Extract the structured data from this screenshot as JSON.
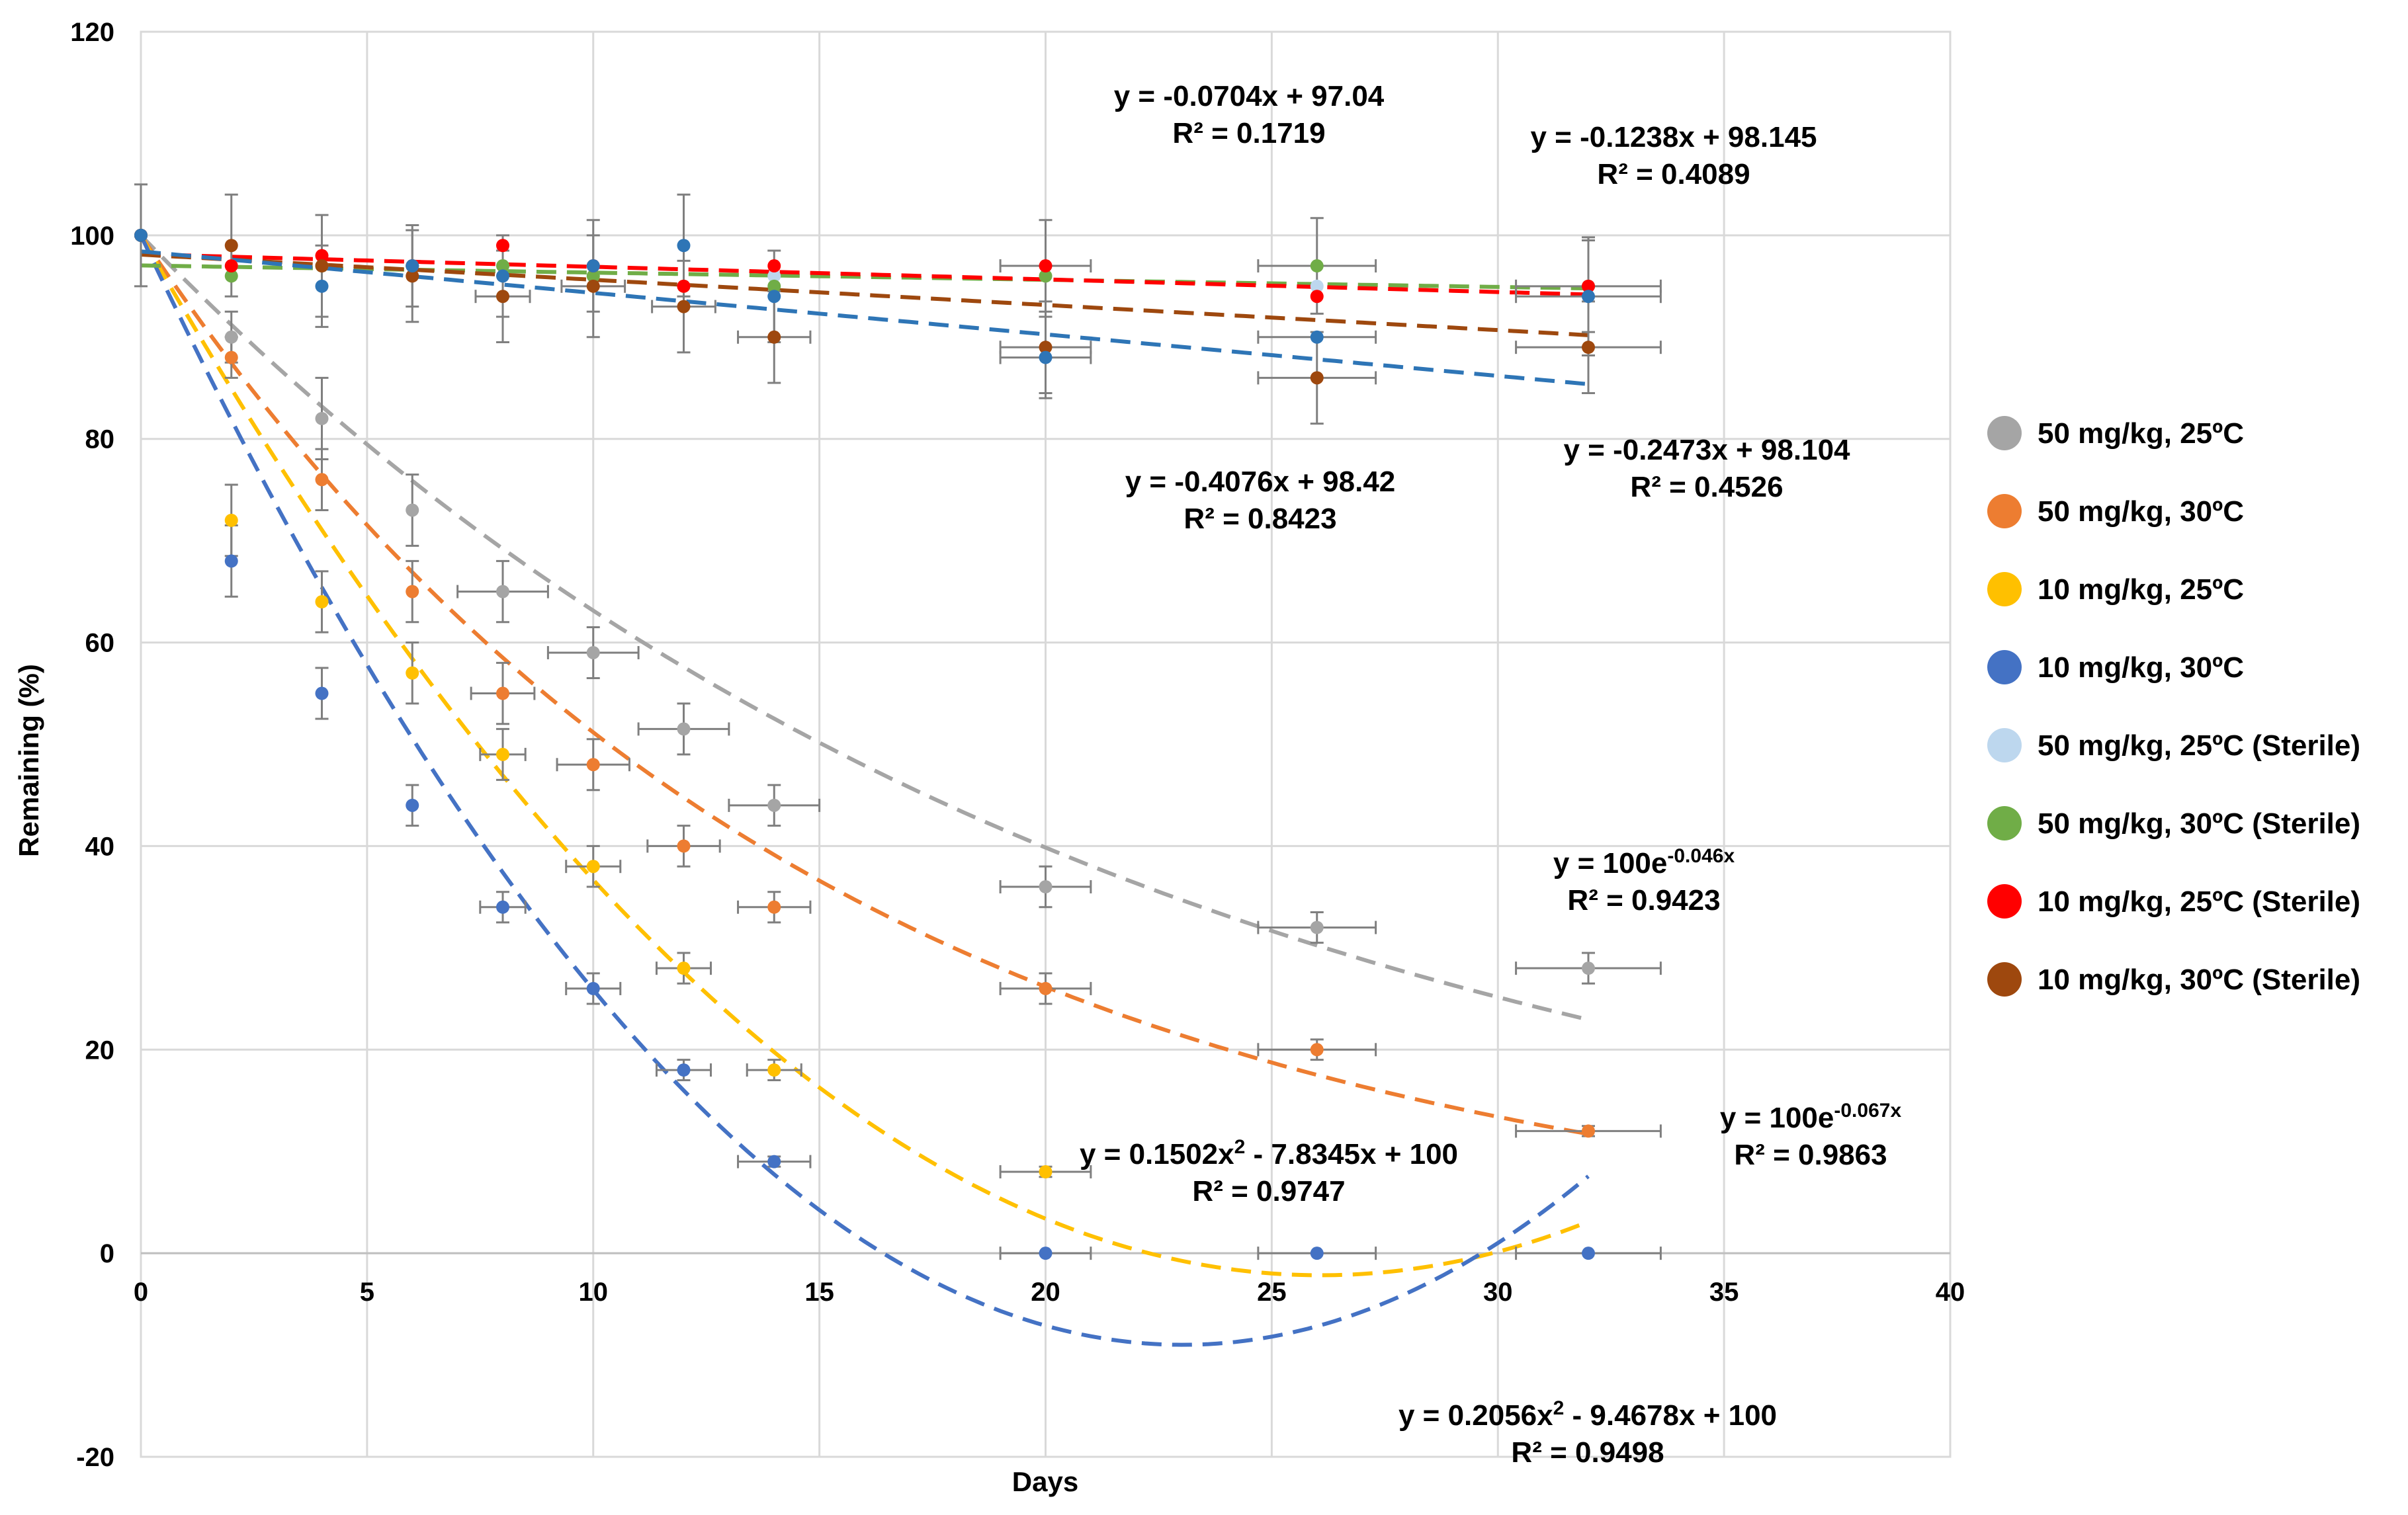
{
  "chart_data": {
    "type": "scatter",
    "title": "",
    "xlabel": "Days",
    "ylabel": "Remaining (%)",
    "xlim": [
      0,
      40
    ],
    "ylim": [
      -20,
      120
    ],
    "x_ticks": [
      0,
      5,
      10,
      15,
      20,
      25,
      30,
      35,
      40
    ],
    "y_ticks": [
      -20,
      0,
      20,
      40,
      60,
      80,
      100,
      120
    ],
    "grid": true,
    "legend_position": "right",
    "x": [
      0,
      2,
      4,
      6,
      8,
      10,
      12,
      14,
      20,
      26,
      32
    ],
    "series": [
      {
        "name": "50 mg/kg, 25ºC",
        "color": "#a5a5a5",
        "values": [
          100,
          90,
          82,
          73,
          65,
          59,
          51.5,
          44,
          36,
          32,
          28
        ],
        "yerr": [
          5,
          2.5,
          4,
          3.5,
          3,
          2.5,
          2.5,
          2,
          2,
          1.5,
          1.5
        ],
        "xerr": [
          0,
          0,
          0,
          0,
          1,
          1,
          1,
          1,
          1,
          1.3,
          1.6
        ],
        "trend": {
          "type": "exponential",
          "a": 100,
          "b": -0.046
        }
      },
      {
        "name": "50 mg/kg, 30ºC",
        "color": "#ed7d31",
        "values": [
          100,
          88,
          76,
          65,
          55,
          48,
          40,
          34,
          26,
          20,
          12
        ],
        "yerr": [
          0,
          2,
          3,
          3,
          3,
          2.5,
          2,
          1.5,
          1.5,
          1,
          0.5
        ],
        "xerr": [
          0,
          0,
          0,
          0,
          0.7,
          0.8,
          0.8,
          0.8,
          1,
          1.3,
          1.6
        ],
        "trend": {
          "type": "exponential",
          "a": 100,
          "b": -0.067
        }
      },
      {
        "name": "10 mg/kg, 25ºC",
        "color": "#ffc000",
        "values": [
          100,
          72,
          64,
          57,
          49,
          38,
          28,
          18,
          8,
          null,
          null
        ],
        "yerr": [
          0,
          3.5,
          3,
          3,
          2.5,
          2,
          1.5,
          1,
          0.5,
          0,
          0
        ],
        "xerr": [
          0,
          0,
          0,
          0,
          0.5,
          0.6,
          0.6,
          0.6,
          1,
          0,
          0
        ],
        "trend": {
          "type": "poly2",
          "a": 0.1502,
          "b": -7.8345,
          "c": 100
        }
      },
      {
        "name": "10 mg/kg, 30ºC",
        "color": "#4472c4",
        "values": [
          100,
          68,
          55,
          44,
          34,
          26,
          18,
          9,
          0,
          0,
          0
        ],
        "yerr": [
          0,
          3.5,
          2.5,
          2,
          1.5,
          1.5,
          1,
          0.5,
          0,
          0,
          0
        ],
        "xerr": [
          0,
          0,
          0,
          0,
          0.5,
          0.6,
          0.6,
          0.8,
          1,
          1.3,
          1.6
        ],
        "trend": {
          "type": "poly2",
          "a": 0.2056,
          "b": -9.4678,
          "c": 100
        }
      },
      {
        "name": "50 mg/kg, 25ºC (Sterile)",
        "color": "#bdd7ee",
        "values": [
          100,
          97,
          97,
          97,
          97,
          96,
          95,
          96,
          96,
          95,
          95
        ],
        "yerr": [
          0,
          0,
          0,
          0,
          0,
          0,
          0,
          0,
          0,
          0,
          0
        ],
        "xerr": [
          0,
          0,
          0,
          0,
          0,
          0,
          0,
          0,
          0,
          0,
          0
        ],
        "trend": null
      },
      {
        "name": "50 mg/kg, 30ºC (Sterile)",
        "color": "#70ad47",
        "values": [
          100,
          96,
          97,
          97,
          97,
          96,
          95,
          95,
          96,
          97,
          95
        ],
        "yerr": [
          0,
          0,
          0,
          0,
          0,
          0,
          0,
          0,
          0,
          4.7,
          4.5
        ],
        "xerr": [
          0,
          0,
          0,
          0,
          0,
          0,
          0,
          0,
          0,
          1.3,
          0
        ],
        "trend": {
          "type": "linear",
          "a": -0.0704,
          "b": 97.04
        }
      },
      {
        "name": "10 mg/kg, 25ºC (Sterile)",
        "color": "#ff0000",
        "values": [
          100,
          97,
          98,
          97,
          99,
          97,
          95,
          97,
          97,
          94,
          95
        ],
        "yerr": [
          0,
          0,
          0,
          0,
          0,
          0,
          0,
          0,
          4.5,
          0,
          0
        ],
        "xerr": [
          0,
          0,
          0,
          0,
          0,
          0,
          0,
          0,
          1,
          0,
          1.6
        ],
        "trend": {
          "type": "linear",
          "a": -0.1238,
          "b": 98.145
        }
      },
      {
        "name": "10 mg/kg, 30ºC (Sterile)",
        "color": "#9e480e",
        "values": [
          100,
          99,
          97,
          96,
          94,
          95,
          93,
          90,
          89,
          86,
          89
        ],
        "yerr": [
          0,
          5,
          5,
          4.5,
          4.5,
          5,
          4.5,
          4.5,
          4.5,
          4.5,
          4.5
        ],
        "xerr": [
          0,
          0,
          0,
          0,
          0.6,
          0.7,
          0.7,
          0.8,
          1,
          1.3,
          1.6
        ],
        "trend": {
          "type": "linear",
          "a": -0.2473,
          "b": 98.104
        }
      },
      {
        "name": "10 mg/kg, 30ºC (Sterile)",
        "color": "#2e75b6",
        "legend": false,
        "values": [
          100,
          null,
          95,
          97,
          96,
          97,
          99,
          94,
          88,
          90,
          94
        ],
        "yerr": [
          0,
          0,
          4,
          4,
          4,
          4.5,
          5,
          4.5,
          4,
          0,
          5.8
        ],
        "xerr": [
          0,
          0,
          0,
          0,
          0,
          0,
          0,
          0,
          1,
          1.3,
          1.6
        ],
        "trend": {
          "type": "linear",
          "a": -0.4076,
          "b": 98.42
        }
      }
    ],
    "annotations": [
      {
        "line1": "y = -0.0704x + 97.04",
        "line2": "R² = 0.1719"
      },
      {
        "line1": "y = -0.1238x + 98.145",
        "line2": "R² = 0.4089"
      },
      {
        "line1": "y = -0.4076x + 98.42",
        "line2": "R² = 0.8423"
      },
      {
        "line1": "y = -0.2473x + 98.104",
        "line2": "R² = 0.4526"
      },
      {
        "line1": "y = 100e",
        "sup": "-0.046x",
        "line2": "R² = 0.9423"
      },
      {
        "line1": "y = 100e",
        "sup": "-0.067x",
        "line2": "R² = 0.9863"
      },
      {
        "line1": "y = 0.1502x",
        "sup": "2",
        "line1b": " - 7.8345x + 100",
        "line2": "R² = 0.9747"
      },
      {
        "line1": "y = 0.2056x",
        "sup": "2",
        "line1b": " - 9.4678x + 100",
        "line2": "R² = 0.9498"
      }
    ]
  }
}
